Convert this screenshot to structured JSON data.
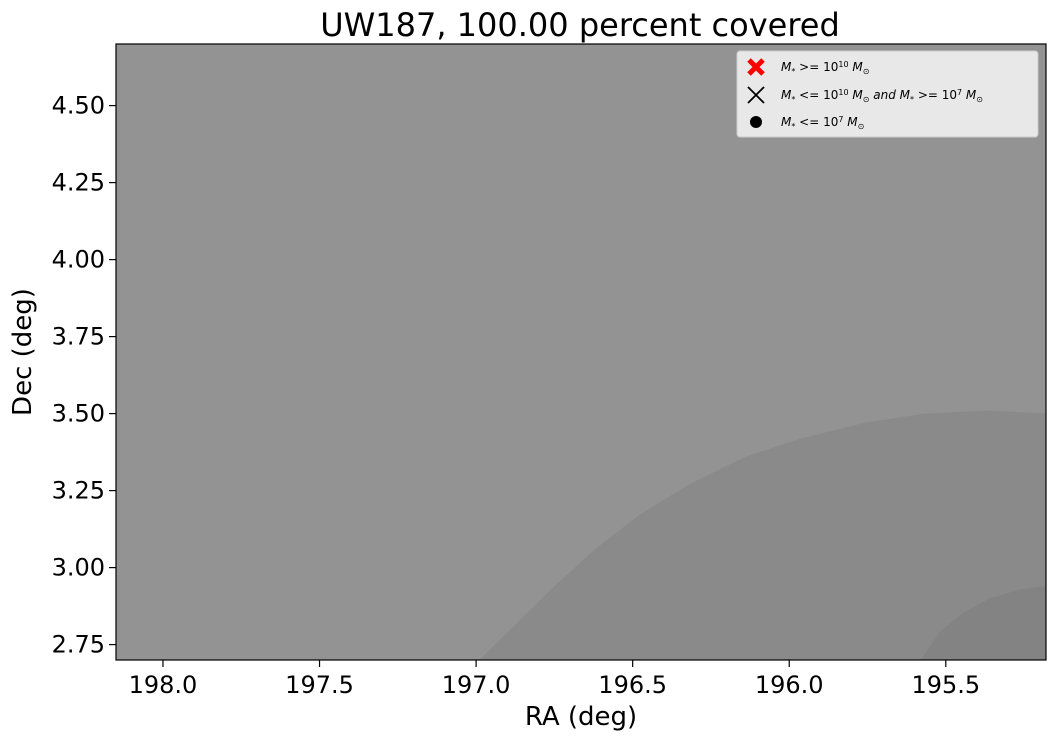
{
  "chart_data": {
    "type": "contour",
    "title": "UW187, 100.00 percent covered",
    "xlabel": "RA (deg)",
    "ylabel": "Dec (deg)",
    "xlim": [
      198.15,
      195.18
    ],
    "ylim": [
      2.7,
      4.7
    ],
    "x_inverted": true,
    "x_ticks": [
      198.0,
      197.5,
      197.0,
      196.5,
      196.0,
      195.5
    ],
    "x_tick_labels": [
      "198.0",
      "197.5",
      "197.0",
      "196.5",
      "196.0",
      "195.5"
    ],
    "y_ticks": [
      2.75,
      3.0,
      3.25,
      3.5,
      3.75,
      4.0,
      4.25,
      4.5
    ],
    "y_tick_labels": [
      "2.75",
      "3.00",
      "3.25",
      "3.50",
      "3.75",
      "4.00",
      "4.25",
      "4.50"
    ],
    "grid": false,
    "background_color": "#939393",
    "contour_levels": [
      {
        "color": "#8a8a8a",
        "points": [
          [
            196.99,
            2.7
          ],
          [
            196.9,
            2.79
          ],
          [
            196.76,
            2.93
          ],
          [
            196.62,
            3.06
          ],
          [
            196.48,
            3.17
          ],
          [
            196.32,
            3.27
          ],
          [
            196.14,
            3.36
          ],
          [
            195.96,
            3.42
          ],
          [
            195.76,
            3.47
          ],
          [
            195.57,
            3.5
          ],
          [
            195.36,
            3.51
          ],
          [
            195.18,
            3.5
          ],
          [
            195.18,
            2.7
          ]
        ]
      },
      {
        "color": "#838383",
        "points": [
          [
            195.58,
            2.7
          ],
          [
            195.52,
            2.79
          ],
          [
            195.45,
            2.85
          ],
          [
            195.36,
            2.9
          ],
          [
            195.26,
            2.93
          ],
          [
            195.18,
            2.94
          ],
          [
            195.18,
            2.7
          ]
        ]
      }
    ],
    "legend": {
      "position": "upper-right",
      "entries": [
        {
          "marker": "bold-x",
          "color": "#ff0000",
          "label_parts": [
            "M",
            "*",
            " >= 10",
            "10",
            " M",
            "⊙"
          ]
        },
        {
          "marker": "x",
          "color": "#000000",
          "label_parts": [
            "M",
            "*",
            " <= 10",
            "10",
            " M",
            "⊙",
            "  and  M",
            "*",
            " >= 10",
            "7",
            " M",
            "⊙"
          ]
        },
        {
          "marker": "dot",
          "color": "#000000",
          "label_parts": [
            "M",
            "*",
            " <= 10",
            "7",
            " M",
            "⊙"
          ]
        }
      ]
    },
    "series": []
  }
}
